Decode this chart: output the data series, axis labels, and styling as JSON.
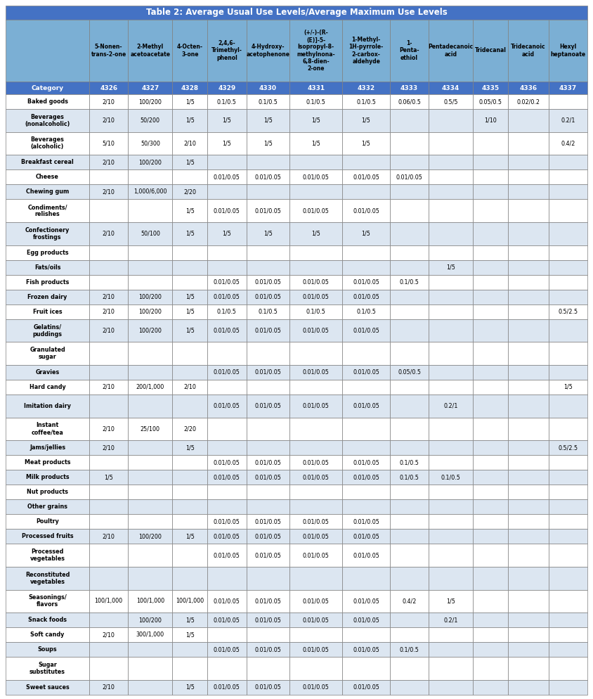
{
  "title": "Table 2: Average Usual Use Levels/Average Maximum Use Levels",
  "col_headers": [
    "",
    "5-Nonen-\ntrans-2-one",
    "2-Methyl\nacetoacetate",
    "4-Octen-\n3-one",
    "2,4,6-\nTrimethyl-\nphenol",
    "4-Hydroxy-\nacetophenone",
    "(+/-)-(R-\n(E)]-5-\nIsopropyl-8-\nmethylnona-\n6,8-dien-\n2-one",
    "1-Methyl-\n1H-pyrrole-\n2-carbox-\naldehyde",
    "1-\nPenta-\nethiol",
    "Pentadecanoic\nacid",
    "Tridecanal",
    "Tridecanoic\nacid",
    "Hexyl\nheptanoate"
  ],
  "col_ids": [
    "Category",
    "4326",
    "4327",
    "4328",
    "4329",
    "4330",
    "4331",
    "4332",
    "4333",
    "4334",
    "4335",
    "4336",
    "4337"
  ],
  "rows": [
    [
      "Baked goods",
      "2/10",
      "100/200",
      "1/5",
      "0.1/0.5",
      "0.1/0.5",
      "0.1/0.5",
      "0.1/0.5",
      "0.06/0.5",
      "0.5/5",
      "0.05/0.5",
      "0.02/0.2",
      ""
    ],
    [
      "Beverages\n(nonalcoholic)",
      "2/10",
      "50/200",
      "1/5",
      "1/5",
      "1/5",
      "1/5",
      "1/5",
      "",
      "",
      "1/10",
      "",
      "0.2/1"
    ],
    [
      "Beverages\n(alcoholic)",
      "5/10",
      "50/300",
      "2/10",
      "1/5",
      "1/5",
      "1/5",
      "1/5",
      "",
      "",
      "",
      "",
      "0.4/2"
    ],
    [
      "Breakfast cereal",
      "2/10",
      "100/200",
      "1/5",
      "",
      "",
      "",
      "",
      "",
      "",
      "",
      "",
      ""
    ],
    [
      "Cheese",
      "",
      "",
      "",
      "0.01/0.05",
      "0.01/0.05",
      "0.01/0.05",
      "0.01/0.05",
      "0.01/0.05",
      "",
      "",
      "",
      ""
    ],
    [
      "Chewing gum",
      "2/10",
      "1,000/6,000",
      "2/20",
      "",
      "",
      "",
      "",
      "",
      "",
      "",
      "",
      ""
    ],
    [
      "Condiments/\nrelishes",
      "",
      "",
      "1/5",
      "0.01/0.05",
      "0.01/0.05",
      "0.01/0.05",
      "0.01/0.05",
      "",
      "",
      "",
      "",
      ""
    ],
    [
      "Confectionery\nfrostings",
      "2/10",
      "50/100",
      "1/5",
      "1/5",
      "1/5",
      "1/5",
      "1/5",
      "",
      "",
      "",
      "",
      ""
    ],
    [
      "Egg products",
      "",
      "",
      "",
      "",
      "",
      "",
      "",
      "",
      "",
      "",
      "",
      ""
    ],
    [
      "Fats/oils",
      "",
      "",
      "",
      "",
      "",
      "",
      "",
      "",
      "1/5",
      "",
      "",
      ""
    ],
    [
      "Fish products",
      "",
      "",
      "",
      "0.01/0.05",
      "0.01/0.05",
      "0.01/0.05",
      "0.01/0.05",
      "0.1/0.5",
      "",
      "",
      "",
      ""
    ],
    [
      "Frozen dairy",
      "2/10",
      "100/200",
      "1/5",
      "0.01/0.05",
      "0.01/0.05",
      "0.01/0.05",
      "0.01/0.05",
      "",
      "",
      "",
      "",
      ""
    ],
    [
      "Fruit ices",
      "2/10",
      "100/200",
      "1/5",
      "0.1/0.5",
      "0.1/0.5",
      "0.1/0.5",
      "0.1/0.5",
      "",
      "",
      "",
      "",
      "0.5/2.5"
    ],
    [
      "Gelatins/\npuddings",
      "2/10",
      "100/200",
      "1/5",
      "0.01/0.05",
      "0.01/0.05",
      "0.01/0.05",
      "0.01/0.05",
      "",
      "",
      "",
      "",
      ""
    ],
    [
      "Granulated\nsugar",
      "",
      "",
      "",
      "",
      "",
      "",
      "",
      "",
      "",
      "",
      "",
      ""
    ],
    [
      "Gravies",
      "",
      "",
      "",
      "0.01/0.05",
      "0.01/0.05",
      "0.01/0.05",
      "0.01/0.05",
      "0.05/0.5",
      "",
      "",
      "",
      ""
    ],
    [
      "Hard candy",
      "2/10",
      "200/1,000",
      "2/10",
      "",
      "",
      "",
      "",
      "",
      "",
      "",
      "",
      "1/5"
    ],
    [
      "Imitation dairy",
      "",
      "",
      "",
      "0.01/0.05",
      "0.01/0.05",
      "0.01/0.05",
      "0.01/0.05",
      "",
      "0.2/1",
      "",
      "",
      ""
    ],
    [
      "Instant\ncoffee/tea",
      "2/10",
      "25/100",
      "2/20",
      "",
      "",
      "",
      "",
      "",
      "",
      "",
      "",
      ""
    ],
    [
      "Jams/jellies",
      "2/10",
      "",
      "1/5",
      "",
      "",
      "",
      "",
      "",
      "",
      "",
      "",
      "0.5/2.5"
    ],
    [
      "Meat products",
      "",
      "",
      "",
      "0.01/0.05",
      "0.01/0.05",
      "0.01/0.05",
      "0.01/0.05",
      "0.1/0.5",
      "",
      "",
      "",
      ""
    ],
    [
      "Milk products",
      "1/5",
      "",
      "",
      "0.01/0.05",
      "0.01/0.05",
      "0.01/0.05",
      "0.01/0.05",
      "0.1/0.5",
      "0.1/0.5",
      "",
      "",
      ""
    ],
    [
      "Nut products",
      "",
      "",
      "",
      "",
      "",
      "",
      "",
      "",
      "",
      "",
      "",
      ""
    ],
    [
      "Other grains",
      "",
      "",
      "",
      "",
      "",
      "",
      "",
      "",
      "",
      "",
      "",
      ""
    ],
    [
      "Poultry",
      "",
      "",
      "",
      "0.01/0.05",
      "0.01/0.05",
      "0.01/0.05",
      "0.01/0.05",
      "",
      "",
      "",
      "",
      ""
    ],
    [
      "Processed fruits",
      "2/10",
      "100/200",
      "1/5",
      "0.01/0.05",
      "0.01/0.05",
      "0.01/0.05",
      "0.01/0.05",
      "",
      "",
      "",
      "",
      ""
    ],
    [
      "Processed\nvegetables",
      "",
      "",
      "",
      "0.01/0.05",
      "0.01/0.05",
      "0.01/0.05",
      "0.01/0.05",
      "",
      "",
      "",
      "",
      ""
    ],
    [
      "Reconstituted\nvegetables",
      "",
      "",
      "",
      "",
      "",
      "",
      "",
      "",
      "",
      "",
      "",
      ""
    ],
    [
      "Seasonings/\nflavors",
      "100/1,000",
      "100/1,000",
      "100/1,000",
      "0.01/0.05",
      "0.01/0.05",
      "0.01/0.05",
      "0.01/0.05",
      "0.4/2",
      "1/5",
      "",
      "",
      ""
    ],
    [
      "Snack foods",
      "",
      "100/200",
      "1/5",
      "0.01/0.05",
      "0.01/0.05",
      "0.01/0.05",
      "0.01/0.05",
      "",
      "0.2/1",
      "",
      "",
      ""
    ],
    [
      "Soft candy",
      "2/10",
      "300/1,000",
      "1/5",
      "",
      "",
      "",
      "",
      "",
      "",
      "",
      "",
      ""
    ],
    [
      "Soups",
      "",
      "",
      "",
      "0.01/0.05",
      "0.01/0.05",
      "0.01/0.05",
      "0.01/0.05",
      "0.1/0.5",
      "",
      "",
      "",
      ""
    ],
    [
      "Sugar\nsubstitutes",
      "",
      "",
      "",
      "",
      "",
      "",
      "",
      "",
      "",
      "",
      "",
      ""
    ],
    [
      "Sweet sauces",
      "2/10",
      "",
      "1/5",
      "0.01/0.05",
      "0.01/0.05",
      "0.01/0.05",
      "0.01/0.05",
      "",
      "",
      "",
      "",
      ""
    ]
  ],
  "title_bg": "#4472c4",
  "header_bg": "#7bafd4",
  "subheader_bg": "#4472c4",
  "alt_row_bg": "#dce6f1",
  "white_row_bg": "#ffffff",
  "border_color": "#7f7f7f",
  "header_text_color": "#000000",
  "subheader_text_color": "#ffffff",
  "body_text_color": "#000000",
  "title_text_color": "#ffffff",
  "col_widths_rel": [
    1.55,
    0.72,
    0.82,
    0.65,
    0.72,
    0.8,
    0.98,
    0.88,
    0.72,
    0.82,
    0.65,
    0.75,
    0.72
  ]
}
